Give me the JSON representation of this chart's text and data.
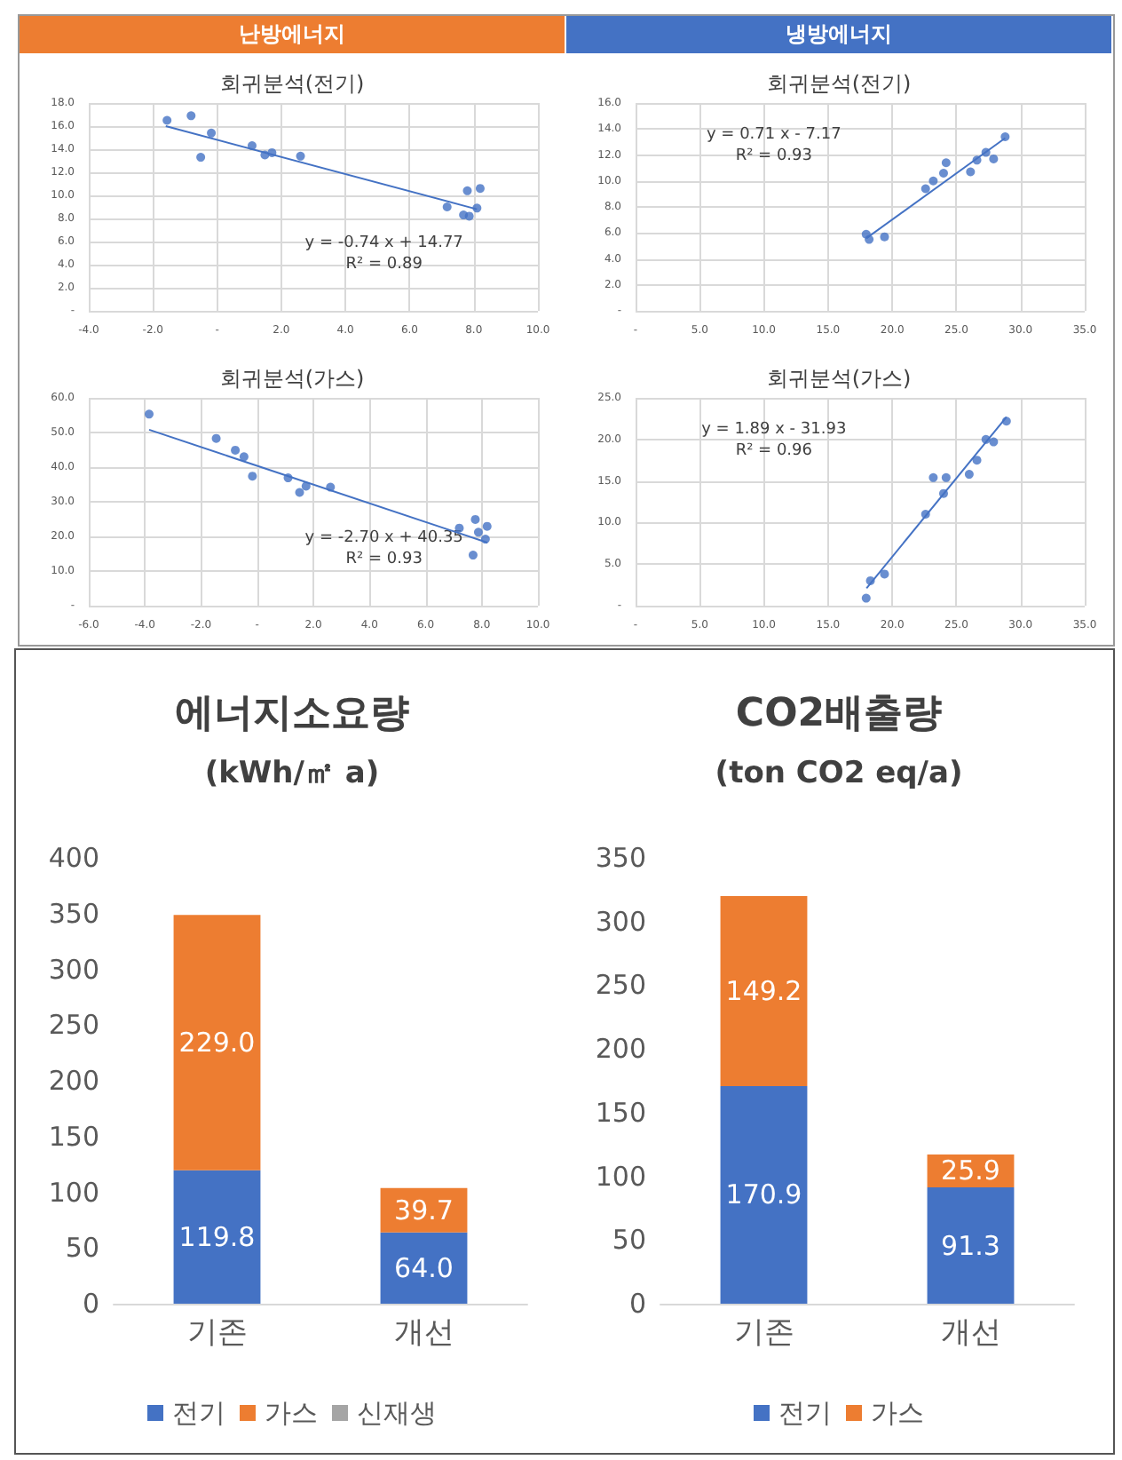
{
  "chart_data": [
    {
      "type": "scatter",
      "title": "회귀분석(전기)",
      "subtitle": "난방에너지",
      "grid": true,
      "xlim": [
        -4,
        10
      ],
      "xticks": [
        {
          "value": -4,
          "label": "-4.0"
        },
        {
          "value": -2,
          "label": "-2.0"
        },
        {
          "value": 0,
          "label": "-"
        },
        {
          "value": 2,
          "label": "2.0"
        },
        {
          "value": 4,
          "label": "4.0"
        },
        {
          "value": 6,
          "label": "6.0"
        },
        {
          "value": 8,
          "label": "8.0"
        },
        {
          "value": 10,
          "label": "10.0"
        }
      ],
      "ylim": [
        0,
        18
      ],
      "yticks": [
        {
          "value": 0,
          "label": "-"
        },
        {
          "value": 2,
          "label": "2.0"
        },
        {
          "value": 4,
          "label": "4.0"
        },
        {
          "value": 6,
          "label": "6.0"
        },
        {
          "value": 8,
          "label": "8.0"
        },
        {
          "value": 10,
          "label": "10.0"
        },
        {
          "value": 12,
          "label": "12.0"
        },
        {
          "value": 14,
          "label": "14.0"
        },
        {
          "value": 16,
          "label": "16.0"
        },
        {
          "value": 18,
          "label": "18.0"
        }
      ],
      "series": [
        {
          "marker": "circle",
          "color": "#4472c4",
          "x": [
            -1.56,
            -0.81,
            -0.51,
            -0.18,
            1.09,
            1.49,
            1.71,
            2.6,
            7.17,
            7.68,
            7.86,
            7.8,
            8.1,
            8.2
          ],
          "values": [
            16.5,
            16.9,
            13.3,
            15.4,
            14.3,
            13.5,
            13.7,
            13.4,
            9.0,
            8.3,
            8.2,
            10.4,
            8.9,
            10.6
          ]
        },
        {
          "type": "line",
          "marker": "none",
          "color": "#4472c4",
          "x": [
            -1.6,
            8.1
          ],
          "values": [
            16.0,
            8.8
          ]
        }
      ],
      "annotations": [
        "y = -0.74 x + 14.77\nR² = 0.89"
      ]
    },
    {
      "type": "scatter",
      "title": "회귀분석(전기)",
      "subtitle": "냉방에너지",
      "grid": true,
      "xlim": [
        0,
        35
      ],
      "xticks": [
        {
          "value": 0,
          "label": "-"
        },
        {
          "value": 5,
          "label": "5.0"
        },
        {
          "value": 10,
          "label": "10.0"
        },
        {
          "value": 15,
          "label": "15.0"
        },
        {
          "value": 20,
          "label": "20.0"
        },
        {
          "value": 25,
          "label": "25.0"
        },
        {
          "value": 30,
          "label": "30.0"
        },
        {
          "value": 35,
          "label": "35.0"
        }
      ],
      "ylim": [
        0,
        16
      ],
      "yticks": [
        {
          "value": 0,
          "label": "-"
        },
        {
          "value": 2,
          "label": "2.0"
        },
        {
          "value": 4,
          "label": "4.0"
        },
        {
          "value": 6,
          "label": "6.0"
        },
        {
          "value": 8,
          "label": "8.0"
        },
        {
          "value": 10,
          "label": "10.0"
        },
        {
          "value": 12,
          "label": "12.0"
        },
        {
          "value": 14,
          "label": "14.0"
        },
        {
          "value": 16,
          "label": "16.0"
        }
      ],
      "series": [
        {
          "marker": "circle",
          "color": "#4472c4",
          "x": [
            17.97,
            18.2,
            19.4,
            22.6,
            23.2,
            24.0,
            24.2,
            26.1,
            26.6,
            27.3,
            27.9,
            28.8
          ],
          "values": [
            5.9,
            5.5,
            5.7,
            9.4,
            10.0,
            10.6,
            11.4,
            10.7,
            11.6,
            12.2,
            11.7,
            13.4
          ]
        },
        {
          "type": "line",
          "marker": "none",
          "color": "#4472c4",
          "x": [
            18,
            28.8
          ],
          "values": [
            5.6,
            13.3
          ]
        }
      ],
      "annotations": [
        "y = 0.71 x - 7.17\nR² = 0.93"
      ]
    },
    {
      "type": "scatter",
      "title": "회귀분석(가스)",
      "grid": true,
      "xlim": [
        -6,
        10
      ],
      "xticks": [
        {
          "value": -6,
          "label": "-6.0"
        },
        {
          "value": -4,
          "label": "-4.0"
        },
        {
          "value": -2,
          "label": "-2.0"
        },
        {
          "value": 0,
          "label": "-"
        },
        {
          "value": 2,
          "label": "2.0"
        },
        {
          "value": 4,
          "label": "4.0"
        },
        {
          "value": 6,
          "label": "6.0"
        },
        {
          "value": 8,
          "label": "8.0"
        },
        {
          "value": 10,
          "label": "10.0"
        }
      ],
      "ylim": [
        0,
        60
      ],
      "yticks": [
        {
          "value": 0,
          "label": "-"
        },
        {
          "value": 10,
          "label": "10.0"
        },
        {
          "value": 20,
          "label": "20.0"
        },
        {
          "value": 30,
          "label": "30.0"
        },
        {
          "value": 40,
          "label": "40.0"
        },
        {
          "value": 50,
          "label": "50.0"
        },
        {
          "value": 60,
          "label": "60.0"
        }
      ],
      "series": [
        {
          "marker": "circle",
          "color": "#4472c4",
          "x": [
            -3.85,
            -1.46,
            -0.78,
            -0.47,
            -0.17,
            1.1,
            1.51,
            1.74,
            2.61,
            7.2,
            7.77,
            7.88,
            7.69,
            8.13,
            8.19
          ],
          "values": [
            55.3,
            48.3,
            44.9,
            43.0,
            37.4,
            36.9,
            32.7,
            34.5,
            34.2,
            22.4,
            24.9,
            21.2,
            14.6,
            19.2,
            22.9
          ]
        },
        {
          "type": "line",
          "marker": "none",
          "color": "#4472c4",
          "x": [
            -3.85,
            8.2
          ],
          "values": [
            50.8,
            18.2
          ]
        }
      ],
      "annotations": [
        "y = -2.70 x + 40.35\nR² = 0.93"
      ]
    },
    {
      "type": "scatter",
      "title": "회귀분석(가스)",
      "grid": true,
      "xlim": [
        0,
        35
      ],
      "xticks": [
        {
          "value": 0,
          "label": "-"
        },
        {
          "value": 5,
          "label": "5.0"
        },
        {
          "value": 10,
          "label": "10.0"
        },
        {
          "value": 15,
          "label": "15.0"
        },
        {
          "value": 20,
          "label": "20.0"
        },
        {
          "value": 25,
          "label": "25.0"
        },
        {
          "value": 30,
          "label": "30.0"
        },
        {
          "value": 35,
          "label": "35.0"
        }
      ],
      "ylim": [
        0,
        25
      ],
      "yticks": [
        {
          "value": 0,
          "label": "-"
        },
        {
          "value": 5,
          "label": "5.0"
        },
        {
          "value": 10,
          "label": "10.0"
        },
        {
          "value": 15,
          "label": "15.0"
        },
        {
          "value": 20,
          "label": "20.0"
        },
        {
          "value": 25,
          "label": "25.0"
        }
      ],
      "series": [
        {
          "marker": "circle",
          "color": "#4472c4",
          "x": [
            17.97,
            18.3,
            19.4,
            22.6,
            23.2,
            24.0,
            24.2,
            26.0,
            26.6,
            27.3,
            27.9,
            28.9
          ],
          "values": [
            0.9,
            3.0,
            3.8,
            11.0,
            15.4,
            13.5,
            15.4,
            15.8,
            17.5,
            20.0,
            19.7,
            22.2
          ]
        },
        {
          "type": "line",
          "marker": "none",
          "color": "#4472c4",
          "x": [
            18,
            28.9
          ],
          "values": [
            2.1,
            22.7
          ]
        }
      ],
      "annotations": [
        "y = 1.89 x - 31.93\nR² = 0.96"
      ]
    },
    {
      "type": "bar",
      "title": "에너지소요량",
      "subtitle": "(kWh/㎡ a)",
      "stacked": true,
      "legend": "bottom",
      "categories": [
        "기존",
        "개선"
      ],
      "ylim": [
        0,
        400
      ],
      "yticks": [
        0,
        50,
        100,
        150,
        200,
        250,
        300,
        350,
        400
      ],
      "series": [
        {
          "name": "전기",
          "color": "#4472c4",
          "values": [
            119.8,
            64.0
          ],
          "value_labels": [
            "119.8",
            "64.0"
          ]
        },
        {
          "name": "가스",
          "color": "#ed7d31",
          "values": [
            229.0,
            39.7
          ],
          "value_labels": [
            "229.0",
            "39.7"
          ]
        },
        {
          "name": "신재생",
          "color": "#a5a5a5",
          "values": [
            null,
            null
          ]
        }
      ]
    },
    {
      "type": "bar",
      "title": "CO2배출량",
      "subtitle": "(ton CO2 eq/a)",
      "stacked": true,
      "legend": "bottom",
      "categories": [
        "기존",
        "개선"
      ],
      "ylim": [
        0,
        350
      ],
      "yticks": [
        0,
        50,
        100,
        150,
        200,
        250,
        300,
        350
      ],
      "series": [
        {
          "name": "전기",
          "color": "#4472c4",
          "values": [
            170.9,
            91.3
          ],
          "value_labels": [
            "170.9",
            "91.3"
          ]
        },
        {
          "name": "가스",
          "color": "#ed7d31",
          "values": [
            149.2,
            25.9
          ],
          "value_labels": [
            "149.2",
            "25.9"
          ]
        }
      ]
    }
  ]
}
